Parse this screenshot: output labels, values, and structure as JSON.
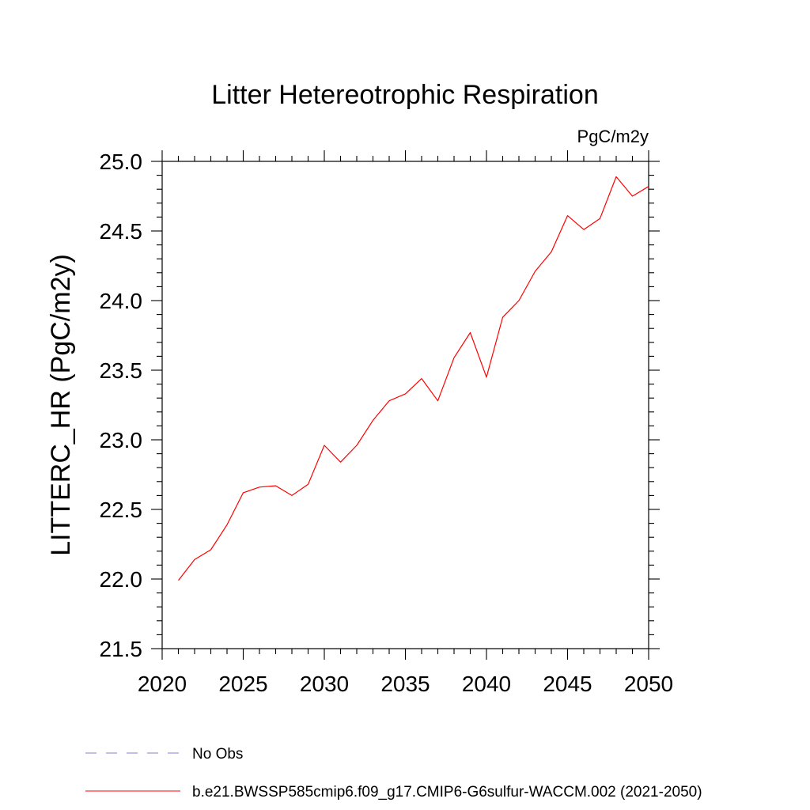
{
  "chart_data": {
    "type": "line",
    "title": "Litter Hetereotrophic Respiration",
    "units": "PgC/m2y",
    "ylabel": "LITTERC_HR  (PgC/m2y)",
    "xlabel": "",
    "xlim": [
      2020,
      2050
    ],
    "ylim": [
      21.5,
      25.0
    ],
    "x_ticks": [
      "2020",
      "2025",
      "2030",
      "2035",
      "2040",
      "2045",
      "2050"
    ],
    "y_ticks": [
      "21.5",
      "22.0",
      "22.5",
      "23.0",
      "23.5",
      "24.0",
      "24.5",
      "25.0"
    ],
    "grid": false,
    "legend_position": "bottom",
    "series": [
      {
        "name": "b.e21.BWSSP585cmip6.f09_g17.CMIP6-G6sulfur-WACCM.002 (2021-2050)",
        "color": "#ff0000",
        "dash": "solid",
        "x": [
          2021,
          2022,
          2023,
          2024,
          2025,
          2026,
          2027,
          2028,
          2029,
          2030,
          2031,
          2032,
          2033,
          2034,
          2035,
          2036,
          2037,
          2038,
          2039,
          2040,
          2041,
          2042,
          2043,
          2044,
          2045,
          2046,
          2047,
          2048,
          2049,
          2050
        ],
        "values": [
          21.99,
          22.14,
          22.21,
          22.39,
          22.62,
          22.66,
          22.67,
          22.6,
          22.68,
          22.96,
          22.84,
          22.96,
          23.14,
          23.28,
          23.33,
          23.44,
          23.28,
          23.59,
          23.77,
          23.45,
          23.88,
          24.0,
          24.21,
          24.35,
          24.61,
          24.51,
          24.59,
          24.89,
          24.75,
          24.82
        ]
      }
    ],
    "legend": [
      {
        "label": "No Obs",
        "color": "#8a7fd0",
        "dash": "dashed"
      },
      {
        "label": "b.e21.BWSSP585cmip6.f09_g17.CMIP6-G6sulfur-WACCM.002 (2021-2050)",
        "color": "#ff0000",
        "dash": "solid"
      }
    ]
  }
}
